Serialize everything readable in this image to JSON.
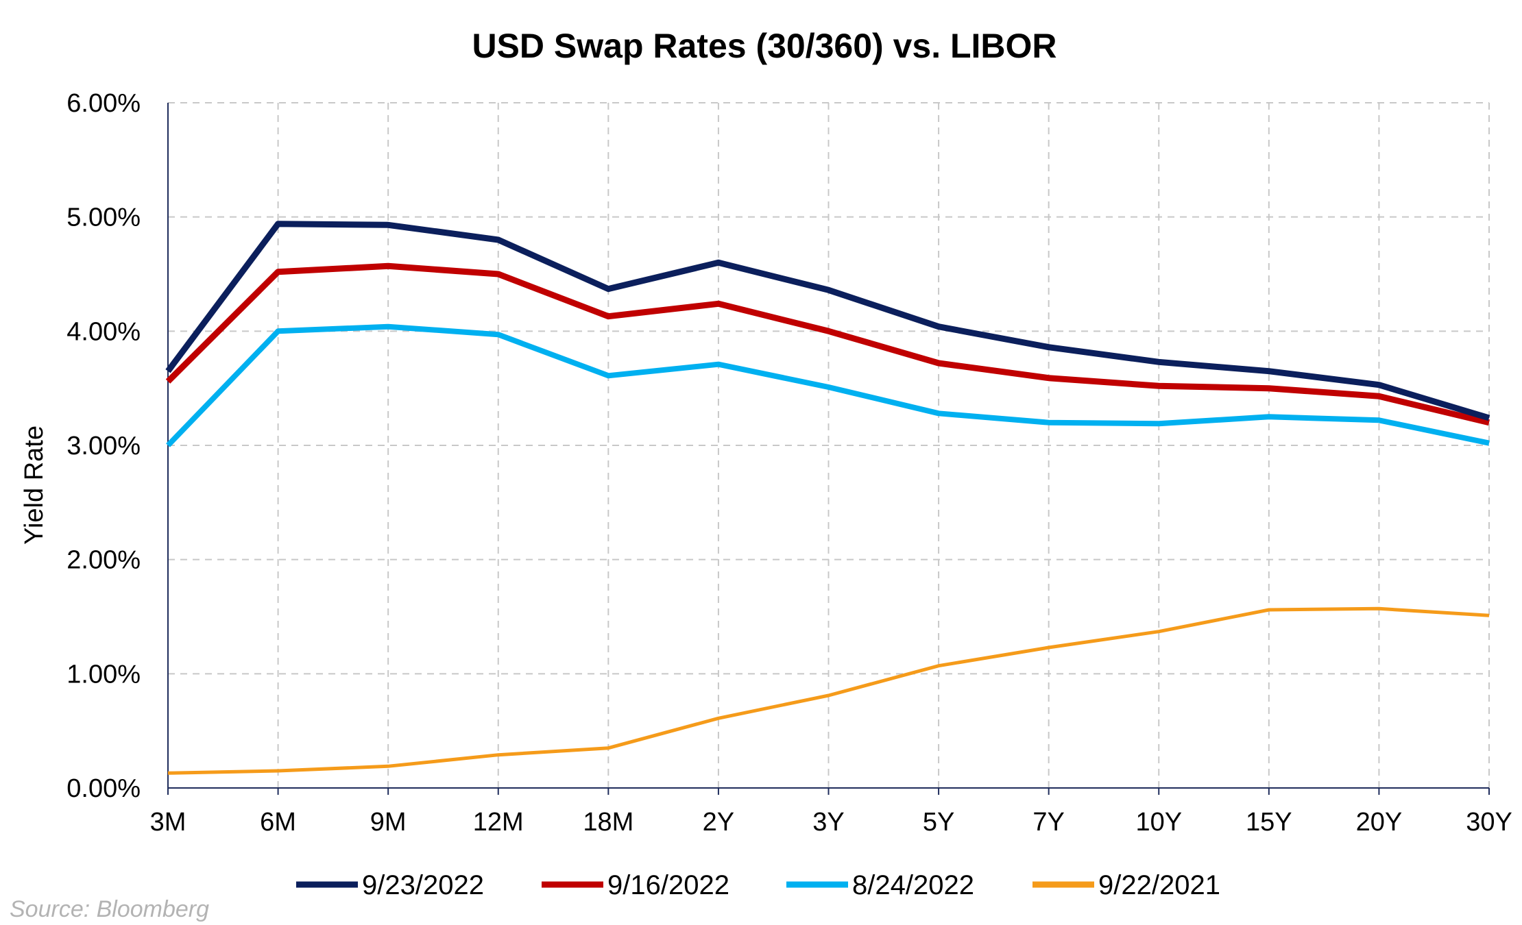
{
  "source_note": "Source: Bloomberg",
  "chart_data": {
    "type": "line",
    "title": "USD Swap Rates (30/360) vs. LIBOR",
    "xlabel": "",
    "ylabel": "Yield Rate",
    "categories": [
      "3M",
      "6M",
      "9M",
      "12M",
      "18M",
      "2Y",
      "3Y",
      "5Y",
      "7Y",
      "10Y",
      "15Y",
      "20Y",
      "30Y"
    ],
    "ylim": [
      0,
      6
    ],
    "yticks": [
      "0.00%",
      "1.00%",
      "2.00%",
      "3.00%",
      "4.00%",
      "5.00%",
      "6.00%"
    ],
    "grid": true,
    "legend_position": "bottom",
    "series": [
      {
        "name": "9/23/2022",
        "color": "#0b1f5c",
        "values": [
          3.65,
          4.94,
          4.93,
          4.8,
          4.37,
          4.6,
          4.36,
          4.04,
          3.86,
          3.73,
          3.65,
          3.53,
          3.24
        ]
      },
      {
        "name": "9/16/2022",
        "color": "#c00000",
        "values": [
          3.56,
          4.52,
          4.57,
          4.5,
          4.13,
          4.24,
          4.0,
          3.72,
          3.59,
          3.52,
          3.5,
          3.43,
          3.2
        ]
      },
      {
        "name": "8/24/2022",
        "color": "#00b0f0",
        "values": [
          3.0,
          4.0,
          4.04,
          3.97,
          3.61,
          3.71,
          3.51,
          3.28,
          3.2,
          3.19,
          3.25,
          3.22,
          3.02
        ]
      },
      {
        "name": "9/22/2021",
        "color": "#f59b1a",
        "values": [
          0.13,
          0.15,
          0.19,
          0.29,
          0.35,
          0.61,
          0.81,
          1.07,
          1.23,
          1.37,
          1.56,
          1.57,
          1.51
        ]
      }
    ]
  }
}
